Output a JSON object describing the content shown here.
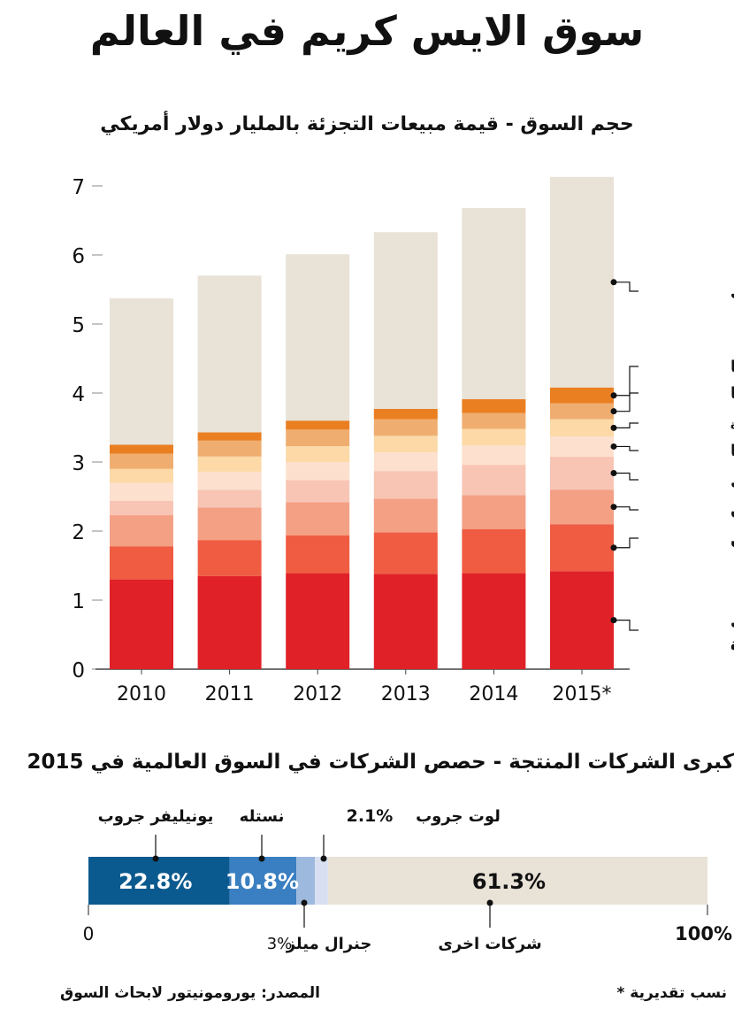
{
  "title": "سوق الايس كريم في العالم",
  "chart_data": [
    {
      "type": "bar",
      "stacked": true,
      "title": "حجم السوق - قيمة مبيعات التجزئة بالمليار دولار أمريكي",
      "categories": [
        "2010",
        "2011",
        "2012",
        "2013",
        "2014",
        "2015*"
      ],
      "ylim": [
        0,
        7
      ],
      "yticks": [
        0,
        1,
        2,
        3,
        4,
        5,
        6,
        7
      ],
      "grid": false,
      "legend": "right",
      "series": [
        {
          "name": "الولايات المتحدة",
          "color": "#e02127",
          "values": [
            1.3,
            1.35,
            1.39,
            1.38,
            1.39,
            1.42
          ]
        },
        {
          "name": "الصين",
          "color": "#ef5c41",
          "values": [
            0.48,
            0.52,
            0.55,
            0.6,
            0.64,
            0.68
          ]
        },
        {
          "name": "اليابان",
          "color": "#f4a085",
          "values": [
            0.45,
            0.47,
            0.48,
            0.49,
            0.49,
            0.5
          ]
        },
        {
          "name": "البرازيل",
          "color": "#f8c5b4",
          "values": [
            0.21,
            0.26,
            0.32,
            0.4,
            0.44,
            0.48
          ]
        },
        {
          "name": "ألمانيا",
          "color": "#fde0ce",
          "values": [
            0.26,
            0.26,
            0.26,
            0.27,
            0.28,
            0.29
          ]
        },
        {
          "name": "المملكة المتحدة",
          "color": "#fcd9a7",
          "values": [
            0.2,
            0.22,
            0.23,
            0.24,
            0.24,
            0.25
          ]
        },
        {
          "name": "إيطاليا",
          "color": "#efae70",
          "values": [
            0.22,
            0.23,
            0.24,
            0.24,
            0.23,
            0.23
          ]
        },
        {
          "name": "روسيا",
          "color": "#ea7f22",
          "values": [
            0.13,
            0.12,
            0.13,
            0.15,
            0.2,
            0.23
          ]
        },
        {
          "name": "بلدان اخرى",
          "color": "#e8e2d7",
          "values": [
            2.12,
            2.27,
            2.41,
            2.56,
            2.77,
            3.05
          ]
        }
      ]
    },
    {
      "type": "bar",
      "stacked": true,
      "orientation": "horizontal",
      "title": "كبرى الشركات المنتجة - حصص الشركات في السوق العالمية في 2015",
      "xlim": [
        0,
        100
      ],
      "axis_labels": [
        "0",
        "100%"
      ],
      "segments": [
        {
          "name": "يونيليفر جروب",
          "value": 22.8,
          "label": "22.8%",
          "color": "#0b5a8f"
        },
        {
          "name": "نستله",
          "value": 10.8,
          "label": "10.8%",
          "color": "#3a7fc1"
        },
        {
          "name": "جنرال ميلز",
          "value": 3.0,
          "label": "3%",
          "color": "#9db9de"
        },
        {
          "name": "لوت جروب",
          "value": 2.1,
          "label": "2.1%",
          "color": "#d7dff0"
        },
        {
          "name": "شركات اخرى",
          "value": 61.3,
          "label": "61.3%",
          "color": "#e8e2d7"
        }
      ]
    }
  ],
  "notes": {
    "estimate": "نسب تقديرية *",
    "source": "المصدر: يورومونيتور لابحاث السوق"
  }
}
